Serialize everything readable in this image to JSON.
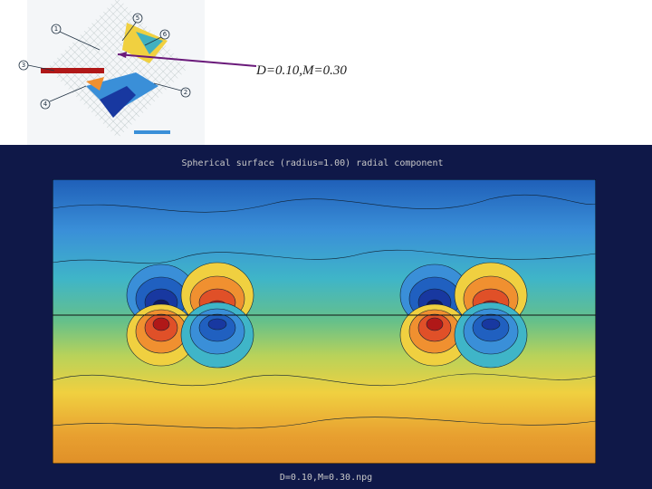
{
  "header": {
    "label": "D=0.10,M=0.30"
  },
  "inset": {
    "markers": [
      "1",
      "5",
      "6",
      "3",
      "4",
      "2"
    ]
  },
  "figure": {
    "title": "Spherical surface (radius=1.00)  radial component",
    "caption": "D=0.10,M=0.30.npg"
  }
}
